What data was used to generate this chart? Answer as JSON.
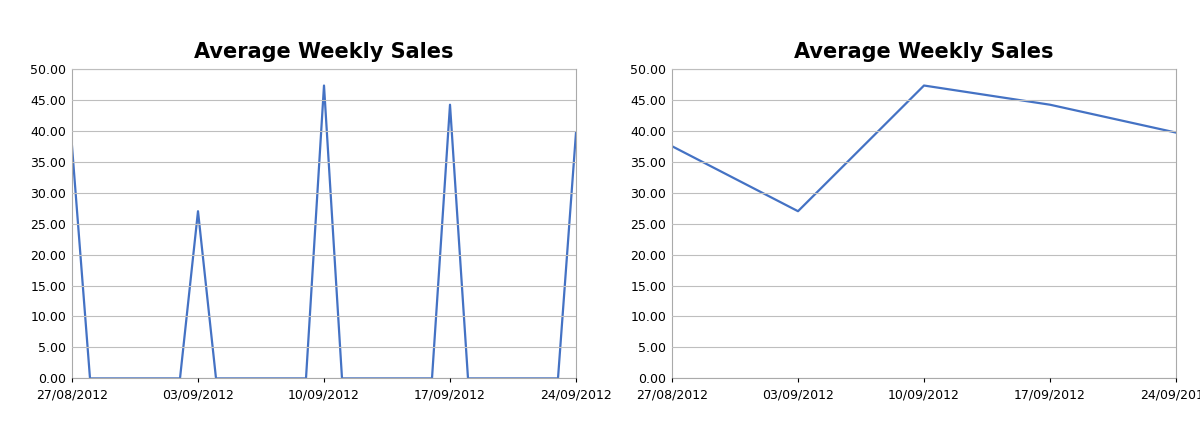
{
  "title": "Average Weekly Sales",
  "dates_labels": [
    "27/08/2012",
    "03/09/2012",
    "10/09/2012",
    "17/09/2012",
    "24/09/2012"
  ],
  "date_positions": [
    0,
    7,
    14,
    21,
    28
  ],
  "data_points_y": [
    37.5,
    27.0,
    47.3,
    44.2,
    39.7
  ],
  "left_x_full": [
    0,
    1,
    2,
    3,
    4,
    5,
    6,
    7,
    8,
    9,
    10,
    11,
    12,
    13,
    14,
    15,
    16,
    17,
    18,
    19,
    20,
    21,
    22,
    23,
    24,
    25,
    26,
    27,
    28
  ],
  "left_y_full": [
    37.5,
    0,
    0,
    0,
    0,
    0,
    0,
    27.0,
    0,
    0,
    0,
    0,
    0,
    0,
    47.3,
    0,
    0,
    0,
    0,
    0,
    0,
    44.2,
    0,
    0,
    0,
    0,
    0,
    0,
    39.7
  ],
  "ylim": [
    0,
    50
  ],
  "yticks": [
    0.0,
    5.0,
    10.0,
    15.0,
    20.0,
    25.0,
    30.0,
    35.0,
    40.0,
    45.0,
    50.0
  ],
  "line_color": "#4472C4",
  "line_width": 1.6,
  "bg_color": "#FFFFFF",
  "plot_bg_color": "#FFFFFF",
  "grid_color": "#BEBEBE",
  "title_fontsize": 15,
  "tick_fontsize": 9,
  "spine_color": "#AAAAAA"
}
